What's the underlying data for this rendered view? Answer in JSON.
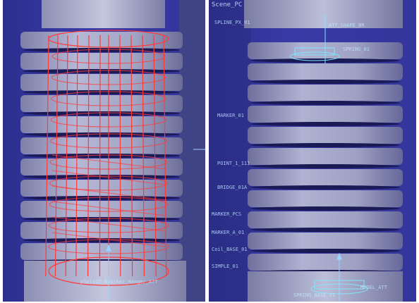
{
  "left_viewport": {
    "title": "",
    "labels": {
      "bottom_node": "pSolid2_Bracket_Hanger_ATT"
    }
  },
  "right_viewport": {
    "title": "Scene_PC",
    "labels": {
      "top_right": "ATT_SHAPE_BR",
      "top_mid": "SPLINE_PX_01",
      "upper_a": "SPRING_01",
      "upper_b": "MARKER_01",
      "mid_a": "POINT_1_111",
      "mid_b": "BRIDGE_01A",
      "lower_a": "MARKER_PCS",
      "lower_b": "MARKER_A_01",
      "lower_c": "Coil_BASE_01",
      "lower_d": "SIMPLE_01",
      "bottom": "SPRING_BASE_01",
      "bottom_right": "MODEL_ATT"
    }
  },
  "colors": {
    "background_blue": "#3436a0",
    "coil_face": "#a9abc8",
    "wireframe_red": "#ff3a3a",
    "constraint_cyan": "#7fe6ff"
  },
  "icons": {
    "axis_gizmo": "axis-arrow-icon"
  }
}
